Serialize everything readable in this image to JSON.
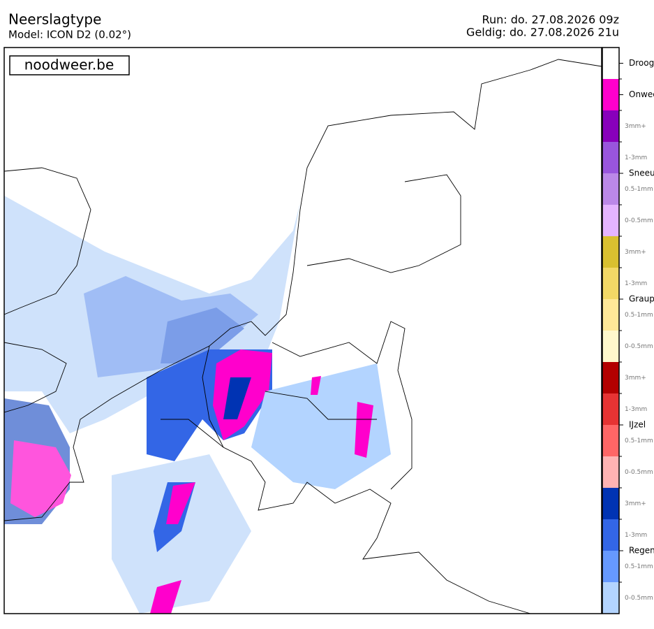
{
  "header": {
    "title": "Neerslagtype",
    "model": "Model: ICON D2 (0.02°)",
    "run": "Run: do. 27.08.2026 09z",
    "valid": "Geldig: do. 27.08.2026 21u"
  },
  "watermark": "noodweer.be",
  "legend": {
    "segments": [
      {
        "color": "#ffffff"
      },
      {
        "color": "#ff00cc"
      },
      {
        "color": "#8800bb",
        "label": "3mm+"
      },
      {
        "color": "#9955dd",
        "label": "1-3mm"
      },
      {
        "color": "#bb88e8",
        "label": "0.5-1mm"
      },
      {
        "color": "#e4b4ff",
        "label": "0-0.5mm"
      },
      {
        "color": "#d9c030",
        "label": "3mm+"
      },
      {
        "color": "#f2d866",
        "label": "1-3mm"
      },
      {
        "color": "#ffe898",
        "label": "0.5-1mm"
      },
      {
        "color": "#fff8cc",
        "label": "0-0.5mm"
      },
      {
        "color": "#b30000",
        "label": "3mm+"
      },
      {
        "color": "#e63333",
        "label": "1-3mm"
      },
      {
        "color": "#ff6666",
        "label": "0.5-1mm"
      },
      {
        "color": "#ffb3b3",
        "label": "0-0.5mm"
      },
      {
        "color": "#0033b3",
        "label": "3mm+"
      },
      {
        "color": "#3366e6",
        "label": "1-3mm"
      },
      {
        "color": "#6699ff",
        "label": "0.5-1mm"
      },
      {
        "color": "#b3d4ff",
        "label": "0-0.5mm"
      }
    ],
    "categories": [
      "Droog",
      "Onweer",
      "Sneeuw",
      "Graupel",
      "IJzel",
      "Regen"
    ]
  }
}
